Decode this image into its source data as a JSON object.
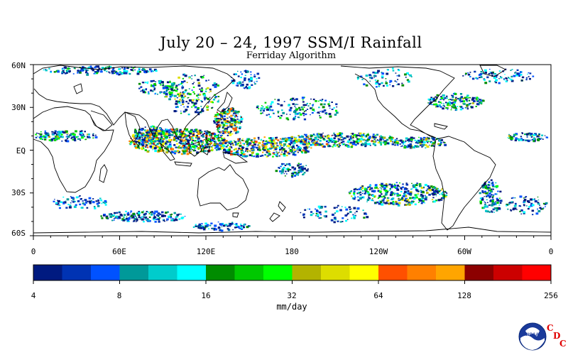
{
  "title": "July 20 – 24, 1997 SSM/I Rainfall",
  "subtitle": "Ferriday Algorithm",
  "lat_labels": [
    "60N",
    "30N",
    "EQ",
    "30S",
    "60S"
  ],
  "lon_labels": [
    "0",
    "60E",
    "120E",
    "180",
    "120W",
    "60W",
    "0"
  ],
  "colorbar": {
    "unit": "mm/day",
    "tick_labels": [
      "4",
      "8",
      "16",
      "32",
      "64",
      "128",
      "256"
    ],
    "colors": [
      "#001a80",
      "#0033b3",
      "#0052ff",
      "#009999",
      "#00cccc",
      "#00ffff",
      "#008c00",
      "#00c800",
      "#00ff00",
      "#b3b300",
      "#dddd00",
      "#ffff00",
      "#ff5000",
      "#ff8000",
      "#ffa500",
      "#8c0000",
      "#cc0000",
      "#ff0000"
    ]
  },
  "logo": {
    "name": "noaa-logo",
    "text": "NOAA",
    "mark": [
      "C",
      "D",
      "C"
    ]
  }
}
